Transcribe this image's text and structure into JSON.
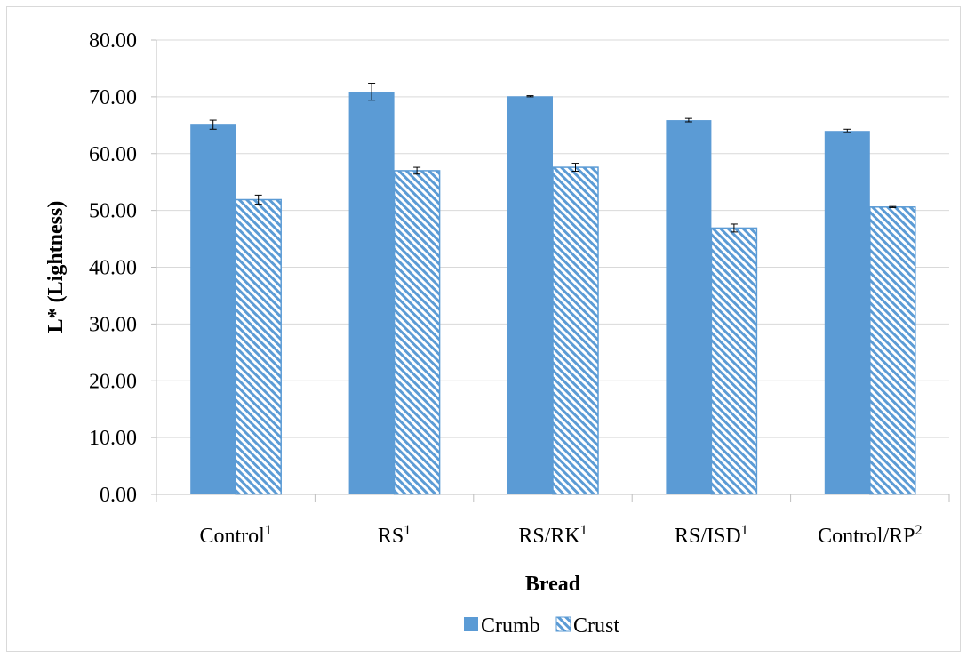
{
  "chart_data": {
    "type": "bar",
    "title": "",
    "xlabel": "Bread",
    "ylabel": "L* (Lightness)",
    "ylim": [
      0,
      80
    ],
    "yticks": [
      "0.00",
      "10.00",
      "20.00",
      "30.00",
      "40.00",
      "50.00",
      "60.00",
      "70.00",
      "80.00"
    ],
    "grid": true,
    "legend_position": "bottom",
    "categories": [
      {
        "label": "Control",
        "sup": "1"
      },
      {
        "label": "RS",
        "sup": "1"
      },
      {
        "label": "RS/RK",
        "sup": "1"
      },
      {
        "label": "RS/ISD",
        "sup": "1"
      },
      {
        "label": "Control/RP",
        "sup": "2"
      }
    ],
    "series": [
      {
        "name": "Crumb",
        "color": "#5b9bd5",
        "pattern": "solid",
        "values": [
          65.1,
          70.9,
          70.1,
          65.9,
          64.0
        ],
        "errors": [
          0.8,
          1.5,
          0.1,
          0.3,
          0.3
        ]
      },
      {
        "name": "Crust",
        "color": "#5b9bd5",
        "pattern": "diagonal-stripes",
        "values": [
          51.9,
          57.0,
          57.6,
          46.9,
          50.6
        ],
        "errors": [
          0.8,
          0.6,
          0.7,
          0.7,
          0.1
        ]
      }
    ]
  }
}
